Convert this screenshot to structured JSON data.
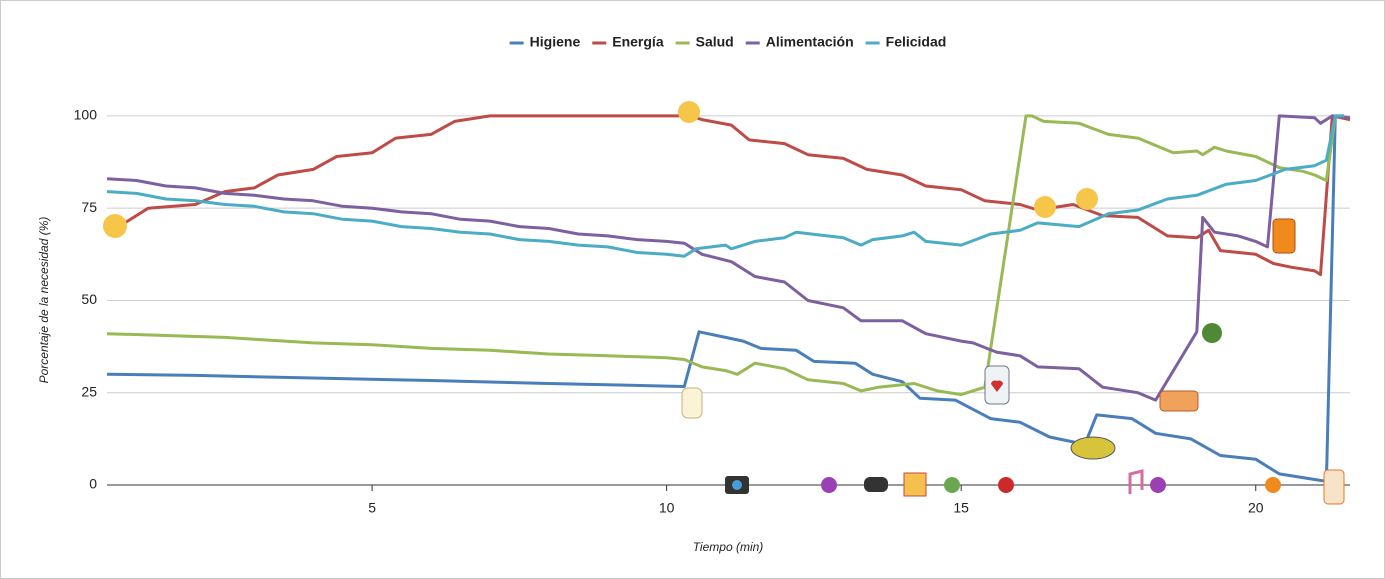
{
  "chart_data": {
    "type": "line",
    "xlabel": "Tiempo (min)",
    "ylabel": "Porcentaje de la necesidad (%)",
    "xlim": [
      0.5,
      21.6
    ],
    "xticks": [
      5,
      10,
      15,
      20
    ],
    "ylim": [
      0,
      110
    ],
    "yticks": [
      0,
      25,
      50,
      75,
      100
    ],
    "grid": true,
    "legend": "top",
    "series": [
      {
        "name": "Higiene",
        "color": "#4a7ebb",
        "x": [
          0.5,
          2,
          4,
          6,
          8,
          10,
          10.3,
          10.55,
          11.0,
          11.3,
          11.6,
          12.2,
          12.5,
          13.2,
          13.5,
          14.0,
          14.3,
          14.9,
          15.5,
          16.0,
          16.5,
          17.1,
          17.3,
          17.9,
          18.3,
          18.9,
          19.4,
          20.0,
          20.4,
          21.0,
          21.2,
          21.35,
          21.6
        ],
        "values": [
          30,
          29.7,
          29,
          28.3,
          27.5,
          26.8,
          26.7,
          41.5,
          40,
          39,
          37,
          36.5,
          33.5,
          33,
          30,
          28,
          23.5,
          23,
          18,
          17,
          13,
          11,
          19,
          18,
          14,
          12.5,
          8,
          7,
          3,
          1.5,
          1,
          100,
          99
        ]
      },
      {
        "name": "Energía",
        "color": "#be4b48",
        "x": [
          0.5,
          0.8,
          1.2,
          2.0,
          2.5,
          3.0,
          3.4,
          4.0,
          4.4,
          5.0,
          5.4,
          6.0,
          6.4,
          7.0,
          10.4,
          10.6,
          11.1,
          11.4,
          12.0,
          12.4,
          13.0,
          13.4,
          14.0,
          14.4,
          15.0,
          15.4,
          16.0,
          16.3,
          16.9,
          17.4,
          18.0,
          18.5,
          19.0,
          19.2,
          19.4,
          20.0,
          20.3,
          20.6,
          21.0,
          21.1,
          21.3,
          21.6
        ],
        "values": [
          71,
          71,
          75,
          76,
          79.5,
          80.5,
          84,
          85.5,
          89,
          90,
          94,
          95,
          98.5,
          100,
          100,
          99,
          97.5,
          93.5,
          92.5,
          89.5,
          88.5,
          85.5,
          84,
          81,
          80,
          77,
          76,
          74.5,
          76,
          73,
          72.5,
          67.5,
          67,
          69,
          63.5,
          62.5,
          60,
          59,
          58,
          57,
          100,
          99
        ]
      },
      {
        "name": "Salud",
        "color": "#98b954",
        "x": [
          0.5,
          1.5,
          2.5,
          3.0,
          4.0,
          5.0,
          6.0,
          7.0,
          8.0,
          9.0,
          10.0,
          10.3,
          10.6,
          11.0,
          11.2,
          11.5,
          12.0,
          12.4,
          13.0,
          13.3,
          13.6,
          14.2,
          14.6,
          15.0,
          15.4,
          16.1,
          16.2,
          16.4,
          17.0,
          17.5,
          18.0,
          18.6,
          19.0,
          19.1,
          19.3,
          19.5,
          20.0,
          20.4,
          20.8,
          21.0,
          21.2,
          21.35,
          21.5
        ],
        "values": [
          41,
          40.5,
          40,
          39.5,
          38.5,
          38,
          37,
          36.5,
          35.5,
          35,
          34.5,
          34,
          32,
          31,
          30,
          33,
          31.5,
          28.5,
          27.5,
          25.5,
          26.5,
          27.5,
          25.5,
          24.5,
          26.5,
          100,
          100,
          98.5,
          98,
          95,
          94,
          90,
          90.5,
          89.5,
          91.5,
          90.5,
          89,
          86,
          85,
          84,
          82.5,
          100,
          100
        ]
      },
      {
        "name": "Alimentación",
        "color": "#7d60a0",
        "x": [
          0.5,
          1.0,
          1.5,
          2.0,
          2.5,
          3.0,
          3.5,
          4.0,
          4.5,
          5.0,
          5.5,
          6.0,
          6.5,
          7.0,
          7.5,
          8.0,
          8.5,
          9.0,
          9.5,
          10.0,
          10.3,
          10.6,
          11.1,
          11.5,
          12.0,
          12.4,
          13.0,
          13.3,
          14.0,
          14.4,
          15.0,
          15.2,
          15.6,
          16.0,
          16.3,
          17.0,
          17.4,
          18.0,
          18.3,
          19.0,
          19.1,
          19.3,
          19.7,
          20.0,
          20.2,
          20.4,
          21.0,
          21.1,
          21.3,
          21.6
        ],
        "values": [
          83,
          82.5,
          81,
          80.5,
          79,
          78.5,
          77.5,
          77,
          75.5,
          75,
          74,
          73.5,
          72,
          71.5,
          70,
          69.5,
          68,
          67.5,
          66.5,
          66,
          65.5,
          62.5,
          60.5,
          56.5,
          55,
          50,
          48,
          44.5,
          44.5,
          41,
          39,
          38.5,
          36,
          35,
          32,
          31.5,
          26.5,
          25,
          23,
          41.5,
          72.5,
          68.5,
          67.5,
          66,
          64.5,
          100,
          99.5,
          98,
          100,
          99.5
        ]
      },
      {
        "name": "Felicidad",
        "color": "#4bacc6",
        "x": [
          0.5,
          1.0,
          1.5,
          2.0,
          2.5,
          3.0,
          3.5,
          4.0,
          4.5,
          5.0,
          5.5,
          6.0,
          6.5,
          7.0,
          7.5,
          8.0,
          8.5,
          9.0,
          9.5,
          10.0,
          10.3,
          10.5,
          11.0,
          11.1,
          11.5,
          12.0,
          12.2,
          13.0,
          13.3,
          13.5,
          14.0,
          14.2,
          14.4,
          15.0,
          15.5,
          16.0,
          16.3,
          17.0,
          17.5,
          18.0,
          18.5,
          19.0,
          19.5,
          20.0,
          20.5,
          21.0,
          21.2,
          21.35,
          21.5
        ],
        "values": [
          79.5,
          79,
          77.5,
          77,
          76,
          75.5,
          74,
          73.5,
          72,
          71.5,
          70,
          69.5,
          68.5,
          68,
          66.5,
          66,
          65,
          64.5,
          63,
          62.5,
          62,
          64,
          65,
          64,
          66,
          67,
          68.5,
          67,
          65,
          66.5,
          67.5,
          68.5,
          66,
          65,
          68,
          69,
          71,
          70,
          73.5,
          74.5,
          77.5,
          78.5,
          81.5,
          82.5,
          85.5,
          86.5,
          88,
          100,
          100
        ]
      }
    ]
  }
}
